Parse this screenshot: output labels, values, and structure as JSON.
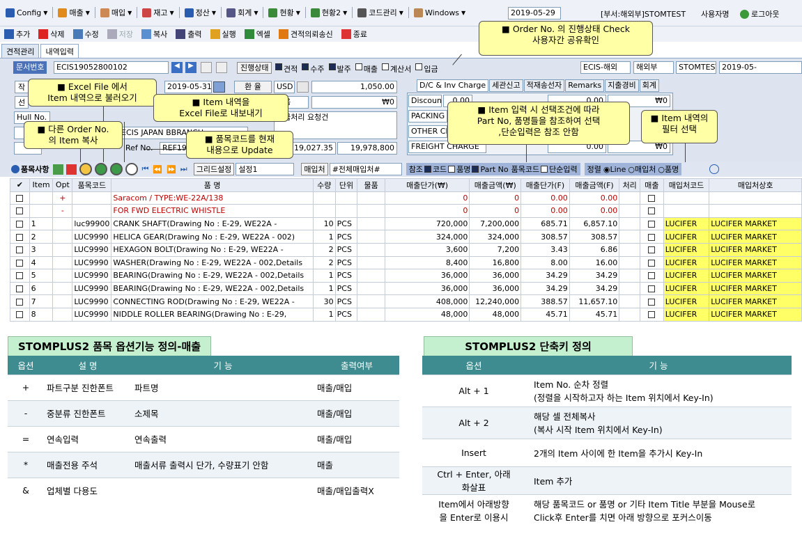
{
  "menubar": {
    "items": [
      "Config",
      "매출",
      "매입",
      "재고",
      "정산",
      "회계",
      "현황",
      "현황2",
      "코드관리",
      "Windows"
    ],
    "date": "2019-05-29",
    "dept": "[부서:해외부]STOMTEST",
    "user": "사용자명",
    "logout": "로그아웃"
  },
  "toolbar": {
    "items": [
      "추가",
      "삭제",
      "수정",
      "저장",
      "복사",
      "출력",
      "실행",
      "엑셀",
      "견적의뢰송신",
      "종료"
    ]
  },
  "tabs": [
    "견적관리",
    "내역입력"
  ],
  "header": {
    "doc_label": "문서번호",
    "doc_no": "ECIS19052800102",
    "status_label": "진행상태",
    "status_items": [
      "견적",
      "수주",
      "발주",
      "매출",
      "계산서",
      "입금"
    ],
    "company": "ECIS-해외",
    "dept": "해외부",
    "user": "STOMTEST",
    "date": "2019-05-",
    "date_field": "2019-05-31",
    "fx_label": "환 율",
    "currency": "USD",
    "rate": "1,050.00",
    "won": "₩0",
    "none_val": "없음",
    "urgent": "긴급처리 요청건",
    "hull_label": "Hull No.",
    "buyer": "ECIS JAPAN BBRANCH",
    "ref_label": "Ref No.",
    "ref_val": "REF19",
    "amt1": "19,027.35",
    "amt2": "19,978,800",
    "right_tabs": [
      "D/C & Inv Charge",
      "세관신고",
      "적재송선자",
      "Remarks",
      "지출경비",
      "회계"
    ],
    "discount_label": "Discount",
    "discount_val": "0.00",
    "packing_label": "PACKING C",
    "other_label": "OTHER CHA",
    "freight_label": "FREIGHT CHARGE",
    "freight_val": "0.00",
    "zero_won": "₩0",
    "zero": "0.00"
  },
  "callouts": {
    "progress": "■ Order No. 의 진행상태 Check\n사용자간 공유확인",
    "excel_in": "■ Excel File 에서\nItem 내역으로 불러오기",
    "excel_out": "■ Item 내역을\nExcel File로 내보내기",
    "copy": "■ 다른 Order No.\n의 Item 복사",
    "update": "■ 품목코드를 현재\n내용으로 Update",
    "select": "■ Item 입력 시 선택조건에 따라\nPart No, 품명들을 참조하여 선택\n,단순입력은 참조 안함",
    "filter": "■ Item 내역의\n필터 선택"
  },
  "gridbar": {
    "title": "품목사항",
    "grid_setting": "그리드설정",
    "setting_val": "설정1",
    "vendor_label": "매입처",
    "vendor_val": "#전체매입처#",
    "ref_label": "참조",
    "code": "코드",
    "name": "품명",
    "partno": "Part No",
    "itemcode": "품목코드",
    "simple": "단순입력",
    "sort_label": "정렬",
    "sort_opts": [
      "Line",
      "매입처",
      "품명"
    ]
  },
  "grid": {
    "headers": [
      "Item",
      "Opt",
      "품목코드",
      "품 명",
      "수량",
      "단위",
      "물품",
      "매출단가(₩)",
      "매출금액(₩)",
      "매출단가(F)",
      "매출금액(F)",
      "처리",
      "매출",
      "매입처코드",
      "매입처상호"
    ],
    "rows": [
      {
        "item": "",
        "opt": "+",
        "code": "",
        "name": "Saracom / TYPE:WE-22A/138",
        "qty": "",
        "unit": "",
        "p1": "0",
        "p2": "0",
        "p3": "0.00",
        "p4": "0.00",
        "vc": "",
        "vn": "",
        "red": true
      },
      {
        "item": "",
        "opt": "-",
        "code": "",
        "name": "FOR FWD ELECTRIC WHISTLE",
        "qty": "",
        "unit": "",
        "p1": "0",
        "p2": "0",
        "p3": "0.00",
        "p4": "0.00",
        "vc": "",
        "vn": "",
        "red": true
      },
      {
        "item": "1",
        "opt": "",
        "code": "luc99900",
        "name": "CRANK SHAFT(Drawing No : E-29, WE22A -",
        "qty": "10",
        "unit": "PCS",
        "p1": "720,000",
        "p2": "7,200,000",
        "p3": "685.71",
        "p4": "6,857.10",
        "vc": "LUCIFER",
        "vn": "LUCIFER MARKET",
        "red": false
      },
      {
        "item": "2",
        "opt": "",
        "code": "LUC9990",
        "name": "HELICA GEAR(Drawing No : E-29, WE22A - 002)",
        "qty": "1",
        "unit": "PCS",
        "p1": "324,000",
        "p2": "324,000",
        "p3": "308.57",
        "p4": "308.57",
        "vc": "LUCIFER",
        "vn": "LUCIFER MARKET",
        "red": false
      },
      {
        "item": "3",
        "opt": "",
        "code": "LUC9990",
        "name": "HEXAGON BOLT(Drawing No : E-29, WE22A -",
        "qty": "2",
        "unit": "PCS",
        "p1": "3,600",
        "p2": "7,200",
        "p3": "3.43",
        "p4": "6.86",
        "vc": "LUCIFER",
        "vn": "LUCIFER MARKET",
        "red": false
      },
      {
        "item": "4",
        "opt": "",
        "code": "LUC9990",
        "name": "WASHER(Drawing No : E-29, WE22A - 002,Details",
        "qty": "2",
        "unit": "PCS",
        "p1": "8,400",
        "p2": "16,800",
        "p3": "8.00",
        "p4": "16.00",
        "vc": "LUCIFER",
        "vn": "LUCIFER MARKET",
        "red": false
      },
      {
        "item": "5",
        "opt": "",
        "code": "LUC9990",
        "name": "BEARING(Drawing No : E-29, WE22A - 002,Details",
        "qty": "1",
        "unit": "PCS",
        "p1": "36,000",
        "p2": "36,000",
        "p3": "34.29",
        "p4": "34.29",
        "vc": "LUCIFER",
        "vn": "LUCIFER MARKET",
        "red": false
      },
      {
        "item": "6",
        "opt": "",
        "code": "LUC9990",
        "name": "BEARING(Drawing No : E-29, WE22A - 002,Details",
        "qty": "1",
        "unit": "PCS",
        "p1": "36,000",
        "p2": "36,000",
        "p3": "34.29",
        "p4": "34.29",
        "vc": "LUCIFER",
        "vn": "LUCIFER MARKET",
        "red": false
      },
      {
        "item": "7",
        "opt": "",
        "code": "LUC9990",
        "name": "CONNECTING ROD(Drawing No : E-29, WE22A -",
        "qty": "30",
        "unit": "PCS",
        "p1": "408,000",
        "p2": "12,240,000",
        "p3": "388.57",
        "p4": "11,657.10",
        "vc": "LUCIFER",
        "vn": "LUCIFER MARKET",
        "red": false
      },
      {
        "item": "8",
        "opt": "",
        "code": "LUC9990",
        "name": "NIDDLE ROLLER BEARING(Drawing No : E-29,",
        "qty": "1",
        "unit": "PCS",
        "p1": "48,000",
        "p2": "48,000",
        "p3": "45.71",
        "p4": "45.71",
        "vc": "LUCIFER",
        "vn": "LUCIFER MARKET",
        "red": false
      }
    ]
  },
  "options_table": {
    "title": "STOMPLUS2 품목 옵션기능 정의-매출",
    "headers": [
      "옵션",
      "설 명",
      "기 능",
      "출력여부"
    ],
    "rows": [
      [
        "+",
        "파트구분 진한폰트",
        "파트명",
        "매출/매입"
      ],
      [
        "-",
        "중분류 진한폰트",
        "소제목",
        "매출/매입"
      ],
      [
        "=",
        "연속입력",
        "연속출력",
        "매출/매입"
      ],
      [
        "*",
        "매출전용 주석",
        "매출서류 출력시 단가, 수량표기 안함",
        "매출"
      ],
      [
        "&",
        "업체별 다용도",
        "",
        "매출/매입출력X"
      ]
    ]
  },
  "shortcut_table": {
    "title": "STOMPLUS2 단축키 정의",
    "headers": [
      "옵션",
      "기 능"
    ],
    "rows": [
      [
        "Alt + 1",
        "Item No. 순차 정렬\n(정렬을 시작하고자 하는 Item 위치에서 Key-In)"
      ],
      [
        "Alt + 2",
        "해당 셀 전체복사\n(복사 시작 Item 위치에서 Key-In)"
      ],
      [
        "Insert",
        "2개의 Item 사이에 한 Item을 추가시 Key-In"
      ],
      [
        "Ctrl + Enter, 아래\n화살표",
        "Item 추가"
      ],
      [
        "Item에서 아래방향\n을 Enter로 이용시",
        "해당 품목코드 or 품명 or 기타 Item Title 부분을 Mouse로\nClick후 Enter를 치면 아래 방향으로 포커스이동"
      ]
    ]
  }
}
